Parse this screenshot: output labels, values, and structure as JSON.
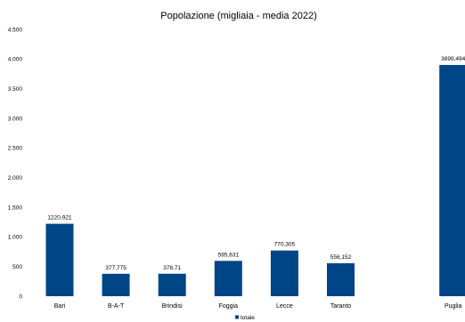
{
  "chart_data": {
    "type": "bar",
    "title": "Popolazione (migliaia  - media 2022)",
    "xlabel": "",
    "ylabel": "",
    "ylim": [
      0,
      4500
    ],
    "yticks": [
      0,
      500,
      1000,
      1500,
      2000,
      2500,
      3000,
      3500,
      4000,
      4500
    ],
    "ytick_labels": [
      "0",
      "500",
      "1.000",
      "1.500",
      "2.000",
      "2.500",
      "3.000",
      "3.500",
      "4.000",
      "4.500"
    ],
    "categories": [
      "Bari",
      "B-A-T",
      "Brindisi",
      "Foggia",
      "Lecce",
      "Taranto",
      "",
      "Puglia"
    ],
    "series": [
      {
        "name": "totale",
        "color": "#004586",
        "values": [
          1220.921,
          377.775,
          378.71,
          595.631,
          770.305,
          556.152,
          null,
          3899.494
        ],
        "labels": [
          "1220,921",
          "377,775",
          "378,71",
          "595,631",
          "770,305",
          "556,152",
          "",
          "3899,494"
        ]
      }
    ],
    "grid": false,
    "legend": "bottom-center"
  }
}
